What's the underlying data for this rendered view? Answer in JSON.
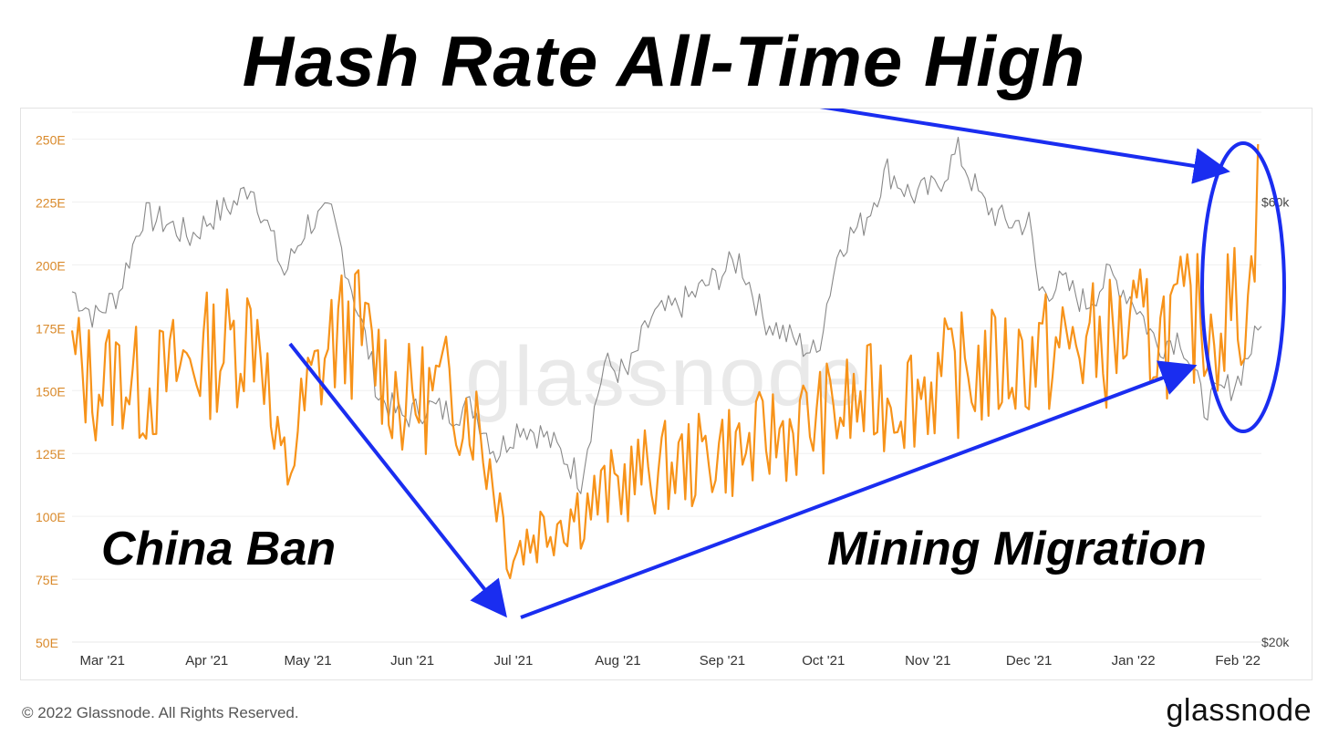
{
  "headline": "Hash Rate All-Time High",
  "watermark": "glassnode",
  "footer": {
    "copyright": "© 2022 Glassnode. All Rights Reserved.",
    "brand": "glassnode"
  },
  "annotations": {
    "left": "China Ban",
    "right": "Mining Migration"
  },
  "colors": {
    "hash_rate": "#f7931a",
    "price": "#888888",
    "arrow": "#1a2df0",
    "axis_text_left": "#d9892a",
    "axis_text_right": "#444444"
  },
  "chart_data": {
    "type": "line",
    "title": "Hash Rate All-Time High",
    "x_ticks": [
      "Mar '21",
      "Apr '21",
      "May '21",
      "Jun '21",
      "Jul '21",
      "Aug '21",
      "Sep '21",
      "Oct '21",
      "Nov '21",
      "Dec '21",
      "Jan '22",
      "Feb '22"
    ],
    "x_range": [
      "2021-02-20",
      "2022-02-08"
    ],
    "y_left": {
      "ticks": [
        "50E",
        "75E",
        "100E",
        "125E",
        "150E",
        "175E",
        "200E",
        "225E",
        "250E"
      ],
      "ylim": [
        50,
        260
      ],
      "unit": "EH/s"
    },
    "y_right": {
      "ticks": [
        "$20k",
        "$60k"
      ],
      "scale": "log"
    },
    "grid": true,
    "series": [
      {
        "name": "",
        "axis": "left",
        "points": [
          [
            "2021-02-20",
            162
          ],
          [
            "2021-02-27",
            152
          ],
          [
            "2021-03-06",
            158
          ],
          [
            "2021-03-13",
            150
          ],
          [
            "2021-03-20",
            155
          ],
          [
            "2021-03-27",
            162
          ],
          [
            "2021-04-03",
            165
          ],
          [
            "2021-04-10",
            170
          ],
          [
            "2021-04-17",
            178
          ],
          [
            "2021-04-21",
            125
          ],
          [
            "2021-04-25",
            118
          ],
          [
            "2021-05-01",
            148
          ],
          [
            "2021-05-08",
            170
          ],
          [
            "2021-05-15",
            175
          ],
          [
            "2021-05-22",
            162
          ],
          [
            "2021-05-29",
            145
          ],
          [
            "2021-06-05",
            148
          ],
          [
            "2021-06-12",
            150
          ],
          [
            "2021-06-19",
            142
          ],
          [
            "2021-06-26",
            112
          ],
          [
            "2021-06-30",
            85
          ],
          [
            "2021-07-07",
            93
          ],
          [
            "2021-07-14",
            100
          ],
          [
            "2021-07-21",
            103
          ],
          [
            "2021-07-28",
            108
          ],
          [
            "2021-08-04",
            115
          ],
          [
            "2021-08-11",
            118
          ],
          [
            "2021-08-18",
            120
          ],
          [
            "2021-08-25",
            122
          ],
          [
            "2021-09-01",
            128
          ],
          [
            "2021-09-08",
            125
          ],
          [
            "2021-09-15",
            132
          ],
          [
            "2021-09-22",
            135
          ],
          [
            "2021-09-29",
            138
          ],
          [
            "2021-10-06",
            142
          ],
          [
            "2021-10-13",
            145
          ],
          [
            "2021-10-20",
            148
          ],
          [
            "2021-10-27",
            150
          ],
          [
            "2021-11-03",
            153
          ],
          [
            "2021-11-10",
            156
          ],
          [
            "2021-11-17",
            158
          ],
          [
            "2021-11-24",
            160
          ],
          [
            "2021-12-01",
            163
          ],
          [
            "2021-12-08",
            165
          ],
          [
            "2021-12-15",
            168
          ],
          [
            "2021-12-22",
            168
          ],
          [
            "2021-12-29",
            172
          ],
          [
            "2022-01-05",
            172
          ],
          [
            "2022-01-12",
            175
          ],
          [
            "2022-01-19",
            178
          ],
          [
            "2022-01-26",
            178
          ],
          [
            "2022-02-02",
            185
          ],
          [
            "2022-02-05",
            188
          ],
          [
            "2022-02-07",
            248
          ]
        ]
      },
      {
        "name": "",
        "axis": "right",
        "points": [
          [
            "2021-02-20",
            48000
          ],
          [
            "2021-02-27",
            45000
          ],
          [
            "2021-03-06",
            48000
          ],
          [
            "2021-03-13",
            58000
          ],
          [
            "2021-03-20",
            57000
          ],
          [
            "2021-03-27",
            55000
          ],
          [
            "2021-04-03",
            58000
          ],
          [
            "2021-04-10",
            60000
          ],
          [
            "2021-04-14",
            63000
          ],
          [
            "2021-04-24",
            50000
          ],
          [
            "2021-05-01",
            57000
          ],
          [
            "2021-05-08",
            58000
          ],
          [
            "2021-05-15",
            47000
          ],
          [
            "2021-05-22",
            37000
          ],
          [
            "2021-05-29",
            35000
          ],
          [
            "2021-06-05",
            36000
          ],
          [
            "2021-06-12",
            35500
          ],
          [
            "2021-06-19",
            36000
          ],
          [
            "2021-06-26",
            32000
          ],
          [
            "2021-07-03",
            34500
          ],
          [
            "2021-07-10",
            33500
          ],
          [
            "2021-07-17",
            31500
          ],
          [
            "2021-07-21",
            30000
          ],
          [
            "2021-07-28",
            40000
          ],
          [
            "2021-08-04",
            39000
          ],
          [
            "2021-08-11",
            45000
          ],
          [
            "2021-08-18",
            46000
          ],
          [
            "2021-08-25",
            48000
          ],
          [
            "2021-09-06",
            52000
          ],
          [
            "2021-09-13",
            45000
          ],
          [
            "2021-09-20",
            43000
          ],
          [
            "2021-09-29",
            41000
          ],
          [
            "2021-10-06",
            54000
          ],
          [
            "2021-10-13",
            57000
          ],
          [
            "2021-10-20",
            65000
          ],
          [
            "2021-10-27",
            61000
          ],
          [
            "2021-11-03",
            62000
          ],
          [
            "2021-11-10",
            68000
          ],
          [
            "2021-11-17",
            60000
          ],
          [
            "2021-11-24",
            57000
          ],
          [
            "2021-12-01",
            57000
          ],
          [
            "2021-12-04",
            48000
          ],
          [
            "2021-12-11",
            49000
          ],
          [
            "2021-12-18",
            46500
          ],
          [
            "2021-12-25",
            50000
          ],
          [
            "2022-01-01",
            47000
          ],
          [
            "2022-01-08",
            42000
          ],
          [
            "2022-01-15",
            43000
          ],
          [
            "2022-01-22",
            36000
          ],
          [
            "2022-01-26",
            37000
          ],
          [
            "2022-02-01",
            38500
          ],
          [
            "2022-02-04",
            41000
          ],
          [
            "2022-02-08",
            44000
          ]
        ]
      }
    ]
  }
}
